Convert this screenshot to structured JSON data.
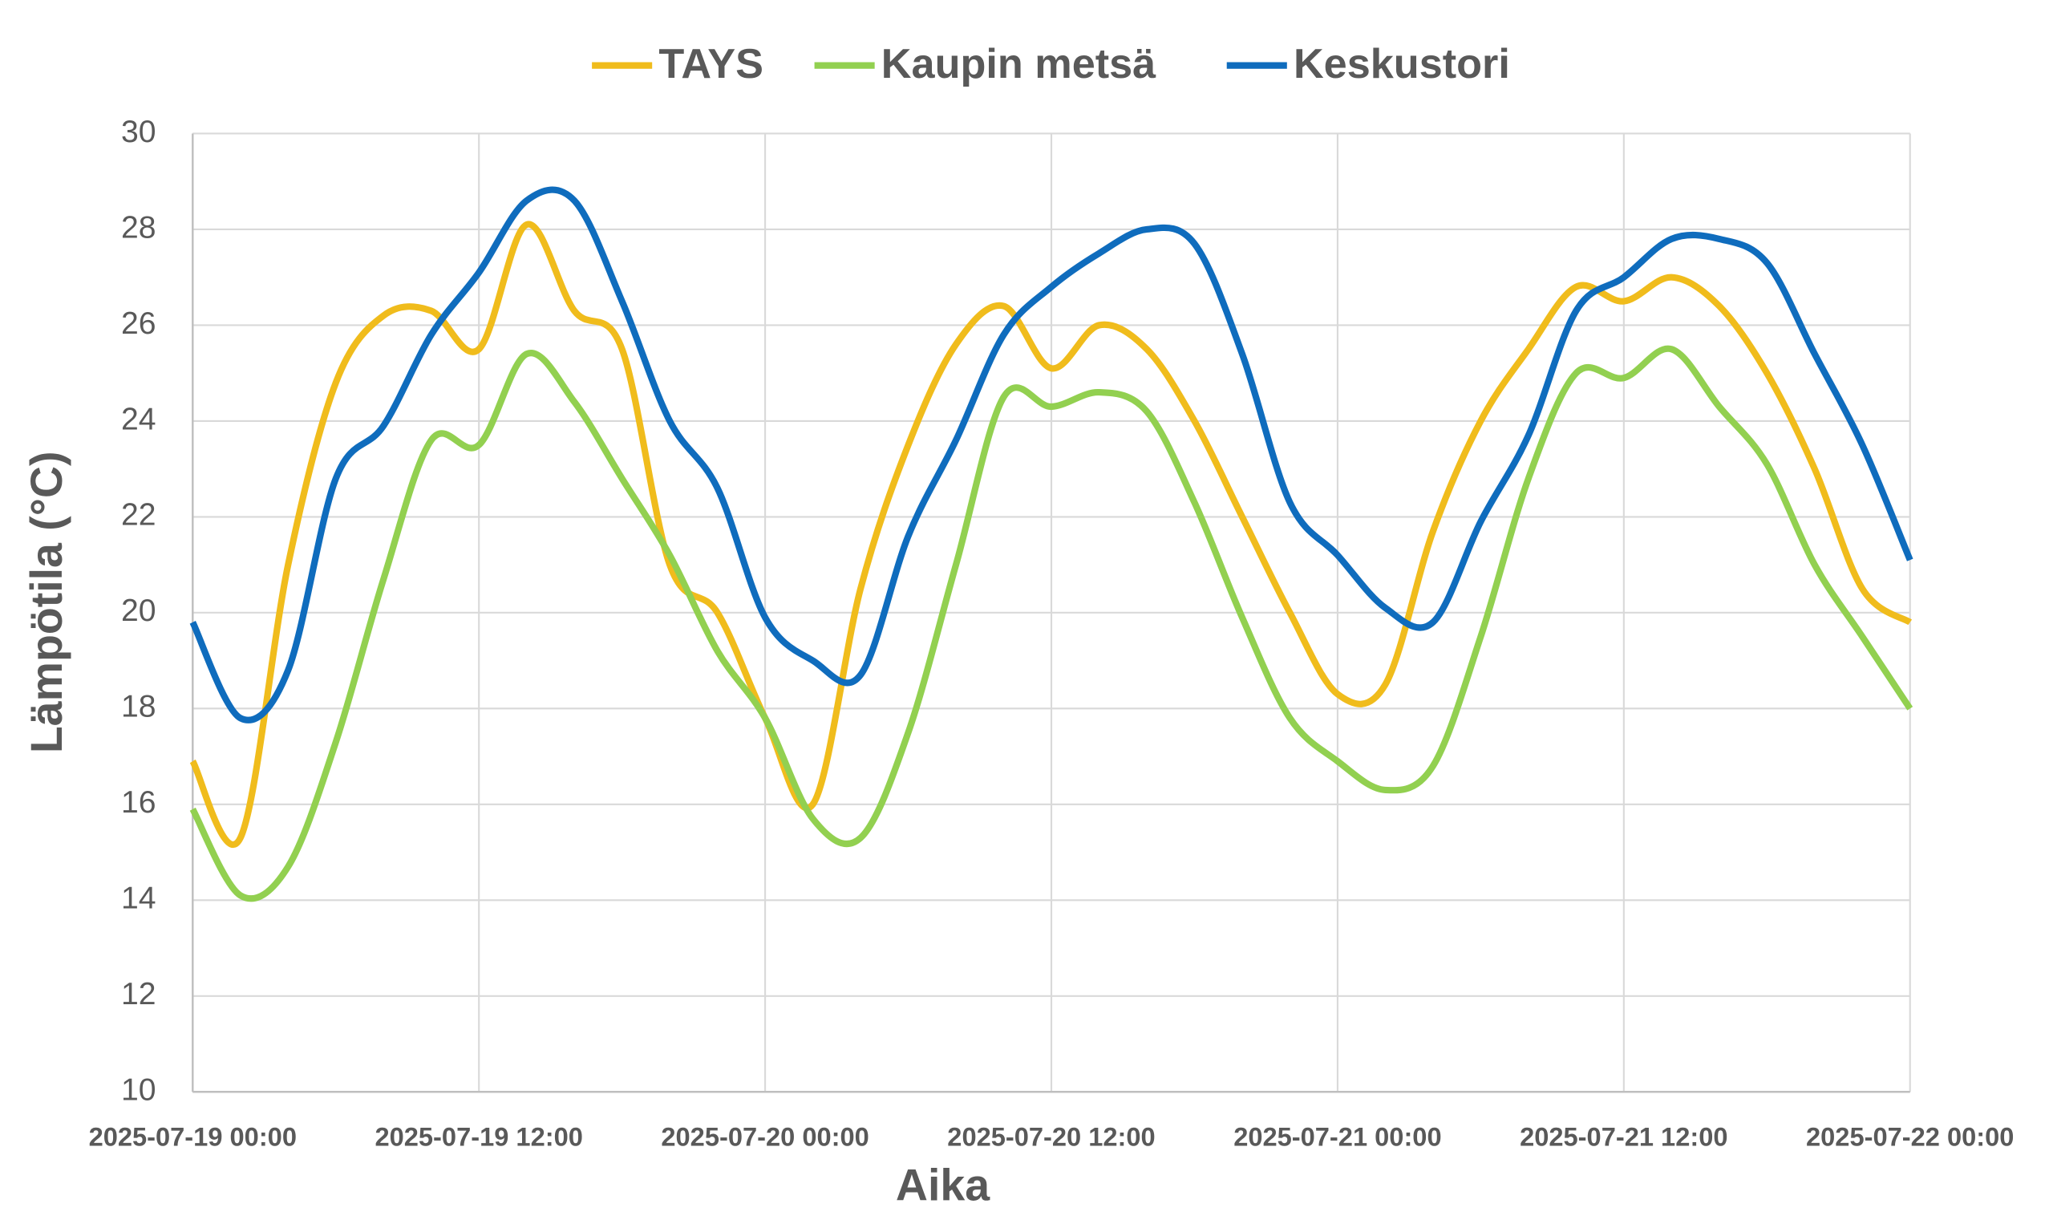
{
  "chart_data": {
    "type": "line",
    "x_label": "Aika",
    "y_label": "Lämpötila (°C)",
    "x": [
      "2025-07-19 00:00",
      "2025-07-19 02:00",
      "2025-07-19 04:00",
      "2025-07-19 06:00",
      "2025-07-19 08:00",
      "2025-07-19 10:00",
      "2025-07-19 12:00",
      "2025-07-19 14:00",
      "2025-07-19 16:00",
      "2025-07-19 18:00",
      "2025-07-19 20:00",
      "2025-07-19 22:00",
      "2025-07-20 00:00",
      "2025-07-20 02:00",
      "2025-07-20 04:00",
      "2025-07-20 06:00",
      "2025-07-20 08:00",
      "2025-07-20 10:00",
      "2025-07-20 12:00",
      "2025-07-20 14:00",
      "2025-07-20 16:00",
      "2025-07-20 18:00",
      "2025-07-20 20:00",
      "2025-07-20 22:00",
      "2025-07-21 00:00",
      "2025-07-21 02:00",
      "2025-07-21 04:00",
      "2025-07-21 06:00",
      "2025-07-21 08:00",
      "2025-07-21 10:00",
      "2025-07-21 12:00",
      "2025-07-21 14:00",
      "2025-07-21 16:00",
      "2025-07-21 18:00",
      "2025-07-21 20:00",
      "2025-07-21 22:00",
      "2025-07-22 00:00"
    ],
    "series": [
      {
        "name": "TAYS",
        "color": "#f0bc1c",
        "values": [
          16.9,
          15.3,
          21.0,
          24.8,
          26.2,
          26.3,
          25.5,
          28.1,
          26.3,
          25.5,
          21.0,
          20.0,
          17.8,
          16.0,
          20.5,
          23.5,
          25.6,
          26.4,
          25.1,
          26.0,
          25.5,
          24.0,
          22.0,
          20.0,
          18.3,
          18.5,
          21.7,
          24.0,
          25.5,
          26.8,
          26.5,
          27.0,
          26.4,
          25.0,
          23.0,
          20.5,
          19.8
        ]
      },
      {
        "name": "Kaupin metsä",
        "color": "#92d050",
        "values": [
          15.9,
          14.1,
          14.7,
          17.3,
          20.7,
          23.6,
          23.5,
          25.4,
          24.4,
          22.8,
          21.2,
          19.2,
          17.8,
          15.7,
          15.3,
          17.5,
          21.0,
          24.5,
          24.3,
          24.6,
          24.2,
          22.3,
          19.9,
          17.8,
          16.9,
          16.3,
          16.8,
          19.5,
          22.8,
          25.0,
          24.9,
          25.5,
          24.3,
          23.1,
          21.0,
          19.5,
          18.0
        ]
      },
      {
        "name": "Keskustori",
        "color": "#0f6cbd",
        "values": [
          19.8,
          17.8,
          18.8,
          22.8,
          23.9,
          25.8,
          27.1,
          28.6,
          28.6,
          26.5,
          24.0,
          22.6,
          19.9,
          19.0,
          18.7,
          21.6,
          23.6,
          25.8,
          26.8,
          27.5,
          28.0,
          27.7,
          25.4,
          22.3,
          21.2,
          20.1,
          19.8,
          21.9,
          23.7,
          26.3,
          27.0,
          27.8,
          27.8,
          27.3,
          25.4,
          23.5,
          21.1
        ]
      }
    ],
    "xlim": [
      "2025-07-19 00:00",
      "2025-07-22 00:00"
    ],
    "xticks": [
      "2025-07-19 00:00",
      "2025-07-19 12:00",
      "2025-07-20 00:00",
      "2025-07-20 12:00",
      "2025-07-21 00:00",
      "2025-07-21 12:00",
      "2025-07-22 00:00"
    ],
    "ylim": [
      10,
      30
    ],
    "yticks": [
      10,
      12,
      14,
      16,
      18,
      20,
      22,
      24,
      26,
      28,
      30
    ],
    "grid": true,
    "legend": "top"
  }
}
